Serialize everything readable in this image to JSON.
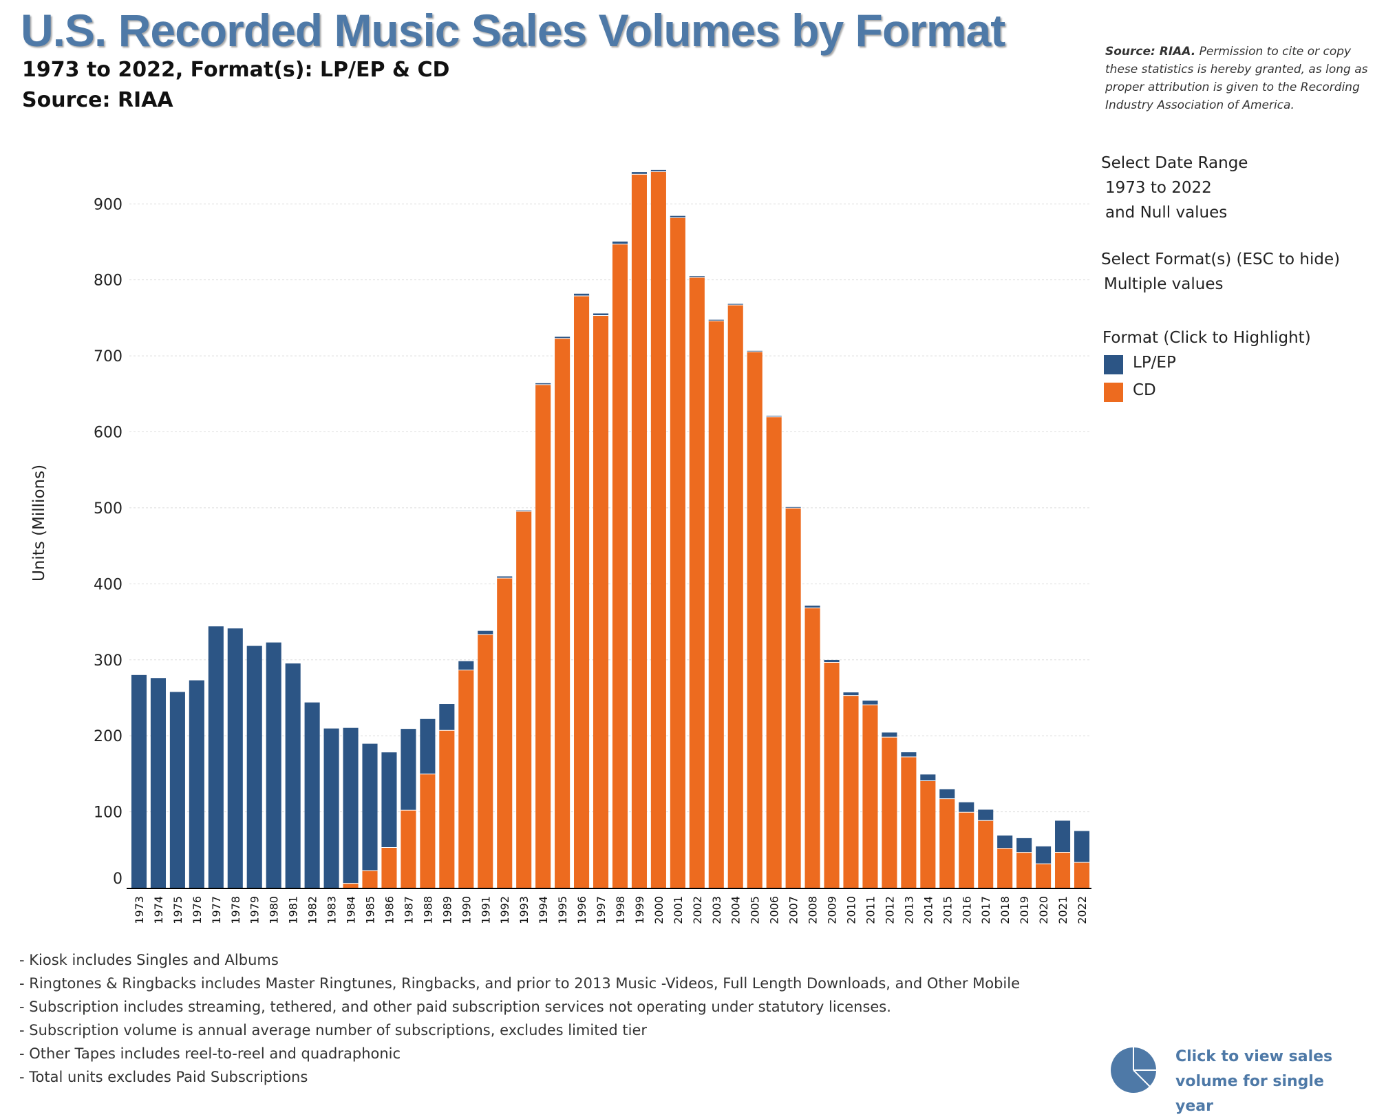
{
  "title": "U.S. Recorded Music Sales Volumes by Format",
  "subtitle_line1": "1973 to 2022, Format(s): LP/EP & CD",
  "subtitle_line2": "Source: RIAA",
  "source_note": {
    "bold": "Source: RIAA.",
    "text": " Permission to cite or copy these statistics is hereby granted, as long as proper attribution is given to the Recording Industry Association of America."
  },
  "controls": {
    "date_range_label": "Select Date Range",
    "date_range_value_1": "1973 to 2022",
    "date_range_value_2": "and Null values",
    "format_label": "Select Format(s) (ESC to hide)",
    "format_value": "Multiple values"
  },
  "legend": {
    "title": "Format (Click to Highlight)",
    "items": [
      {
        "label": "LP/EP",
        "color": "#2c5585"
      },
      {
        "label": "CD",
        "color": "#ed6b1f"
      }
    ]
  },
  "footnotes": [
    "- Kiosk includes Singles and Albums",
    "- Ringtones & Ringbacks includes Master Ringtunes, Ringbacks, and prior to 2013 Music -Videos, Full Length Downloads, and Other Mobile",
    "- Subscription includes streaming, tethered, and other paid subscription services not operating under statutory licenses.",
    "- Subscription volume is annual average number of subscriptions, excludes limited tier",
    "- Other Tapes includes reel-to-reel and quadraphonic",
    "- Total units excludes Paid Subscriptions"
  ],
  "single_year_link": "Click to view sales volume for single year",
  "single_year_icon": "pie-chart-icon",
  "chart_data": {
    "type": "bar",
    "stacked": true,
    "ylabel": "Units (Millions)",
    "xlabel": "",
    "ylim": [
      0,
      960
    ],
    "yticks": [
      0,
      100,
      200,
      300,
      400,
      500,
      600,
      700,
      800,
      900
    ],
    "grid": true,
    "categories": [
      "1973",
      "1974",
      "1975",
      "1976",
      "1977",
      "1978",
      "1979",
      "1980",
      "1981",
      "1982",
      "1983",
      "1984",
      "1985",
      "1986",
      "1987",
      "1988",
      "1989",
      "1990",
      "1991",
      "1992",
      "1993",
      "1994",
      "1995",
      "1996",
      "1997",
      "1998",
      "1999",
      "2000",
      "2001",
      "2002",
      "2003",
      "2004",
      "2005",
      "2006",
      "2007",
      "2008",
      "2009",
      "2010",
      "2011",
      "2012",
      "2013",
      "2014",
      "2015",
      "2016",
      "2017",
      "2018",
      "2019",
      "2020",
      "2021",
      "2022"
    ],
    "series": [
      {
        "name": "CD",
        "color": "#ed6b1f",
        "values": [
          0,
          0,
          0,
          0,
          0,
          0,
          0,
          0,
          0,
          0,
          0,
          5.8,
          22.6,
          53,
          102.1,
          149.7,
          207.2,
          286.5,
          333.3,
          407.5,
          495.4,
          662.1,
          722.9,
          778.9,
          753.1,
          847,
          938.9,
          942.5,
          881.9,
          803.3,
          746,
          767,
          705.4,
          619.7,
          499.7,
          368.4,
          296.6,
          253,
          240.8,
          198.2,
          172.2,
          140.8,
          117.2,
          99.4,
          88.5,
          52,
          46.5,
          31.6,
          46.6,
          33.4
        ]
      },
      {
        "name": "LP/EP",
        "color": "#2c5585",
        "values": [
          280,
          276,
          257.7,
          273,
          344,
          341.3,
          318.3,
          322.8,
          295.2,
          243.9,
          209.6,
          204.6,
          167,
          125.2,
          107,
          72.4,
          34.6,
          11.7,
          4.8,
          2.3,
          1.2,
          1.9,
          2.2,
          2.9,
          2.7,
          3.4,
          2.9,
          2.2,
          2.3,
          1.7,
          1.5,
          1.4,
          1.2,
          1.3,
          1.3,
          2.9,
          3.2,
          4.1,
          5.5,
          6.1,
          6.1,
          8.3,
          12.4,
          13.1,
          14.3,
          16.7,
          18.8,
          22.9,
          41.7,
          41.3
        ]
      }
    ]
  }
}
